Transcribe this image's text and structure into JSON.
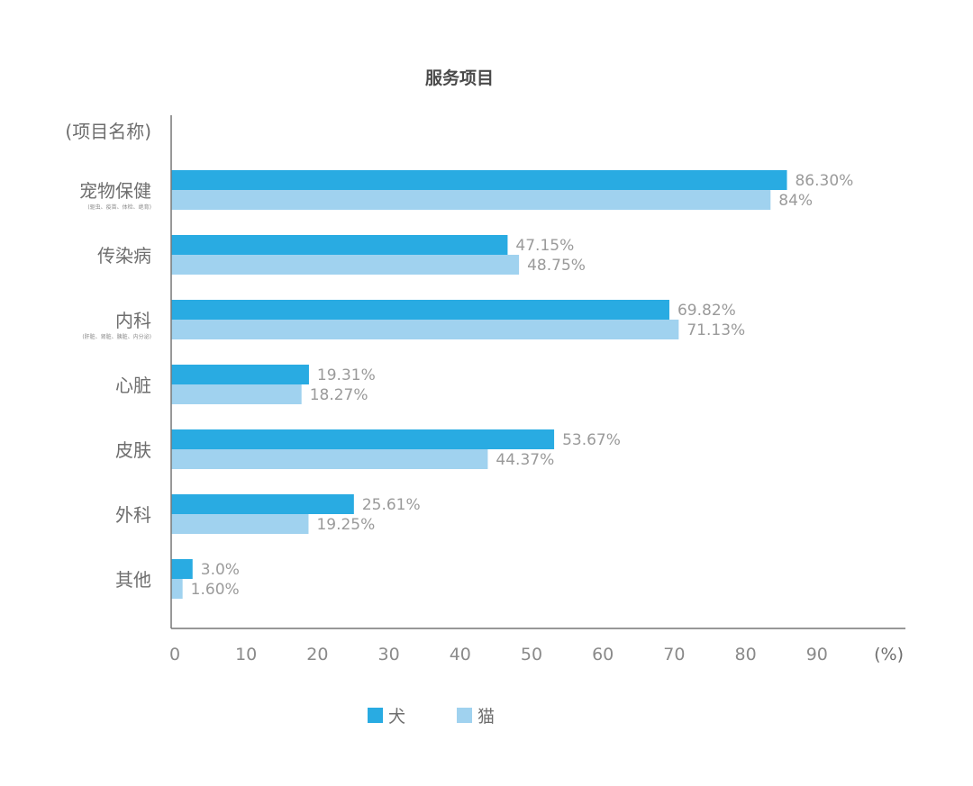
{
  "chart_data": {
    "type": "bar",
    "orientation": "horizontal",
    "title": "服务项目",
    "category_axis_label": "(项目名称)",
    "value_axis_unit": "(%)",
    "categories": [
      {
        "name": "宠物保健",
        "note": "(驱虫、疫苗、体检、绝育)"
      },
      {
        "name": "传染病",
        "note": ""
      },
      {
        "name": "内科",
        "note": "(肝脏、肾脏、胰脏、内分泌)"
      },
      {
        "name": "心脏",
        "note": ""
      },
      {
        "name": "皮肤",
        "note": ""
      },
      {
        "name": "外科",
        "note": ""
      },
      {
        "name": "其他",
        "note": ""
      }
    ],
    "series": [
      {
        "name": "犬",
        "color": "#29abe2",
        "values": [
          86.3,
          47.15,
          69.82,
          19.31,
          53.67,
          25.61,
          3.0
        ],
        "labels": [
          "86.30%",
          "47.15%",
          "69.82%",
          "19.31%",
          "53.67%",
          "25.61%",
          "3.0%"
        ]
      },
      {
        "name": "猫",
        "color": "#a0d2ef",
        "values": [
          84,
          48.75,
          71.13,
          18.27,
          44.37,
          19.25,
          1.6
        ],
        "labels": [
          "84%",
          "48.75%",
          "71.13%",
          "18.27%",
          "44.37%",
          "19.25%",
          "1.60%"
        ]
      }
    ],
    "xlim": [
      0,
      100
    ],
    "xticks": [
      "0",
      "10",
      "20",
      "30",
      "40",
      "50",
      "60",
      "70",
      "80",
      "90"
    ],
    "grid": false,
    "legend_position": "bottom-center"
  }
}
